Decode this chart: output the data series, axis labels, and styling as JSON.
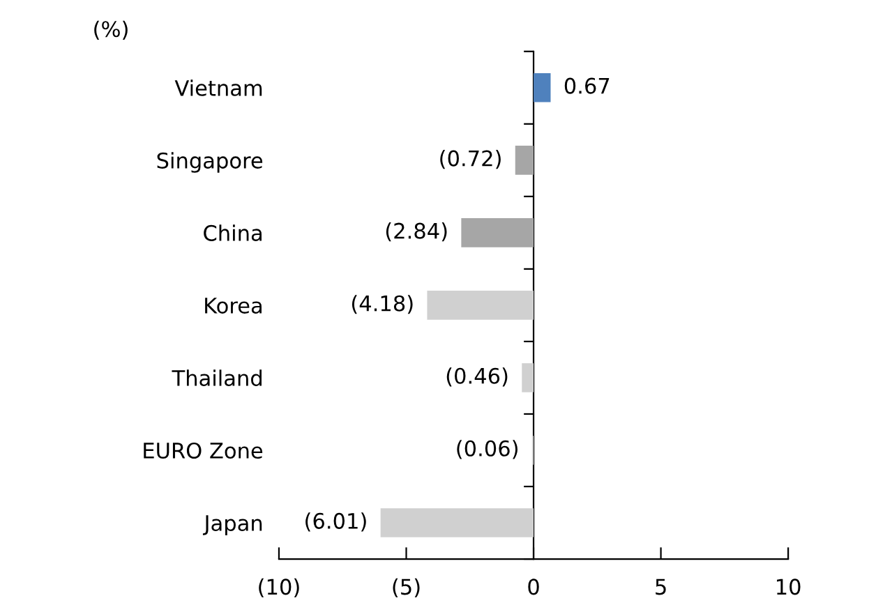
{
  "chart_data": {
    "type": "bar",
    "orientation": "horizontal",
    "ylabel": "(%)",
    "categories": [
      "Vietnam",
      "Singapore",
      "China",
      "Korea",
      "Thailand",
      "EURO Zone",
      "Japan"
    ],
    "values": [
      0.67,
      -0.72,
      -2.84,
      -4.18,
      -0.46,
      -0.06,
      -6.01
    ],
    "colors": [
      "#4f81bd",
      "#a6a6a6",
      "#a6a6a6",
      "#d0d0d0",
      "#d0d0d0",
      "#d0d0d0",
      "#d0d0d0"
    ],
    "value_labels": [
      "0.67",
      "(0.72)",
      "(2.84)",
      "(4.18)",
      "(0.46)",
      "(0.06)",
      "(6.01)"
    ],
    "xlim": [
      -10,
      10
    ],
    "xticks": [
      {
        "value": -10,
        "label": "(10)"
      },
      {
        "value": -5,
        "label": "(5)"
      },
      0,
      5,
      10
    ],
    "legend": false
  }
}
